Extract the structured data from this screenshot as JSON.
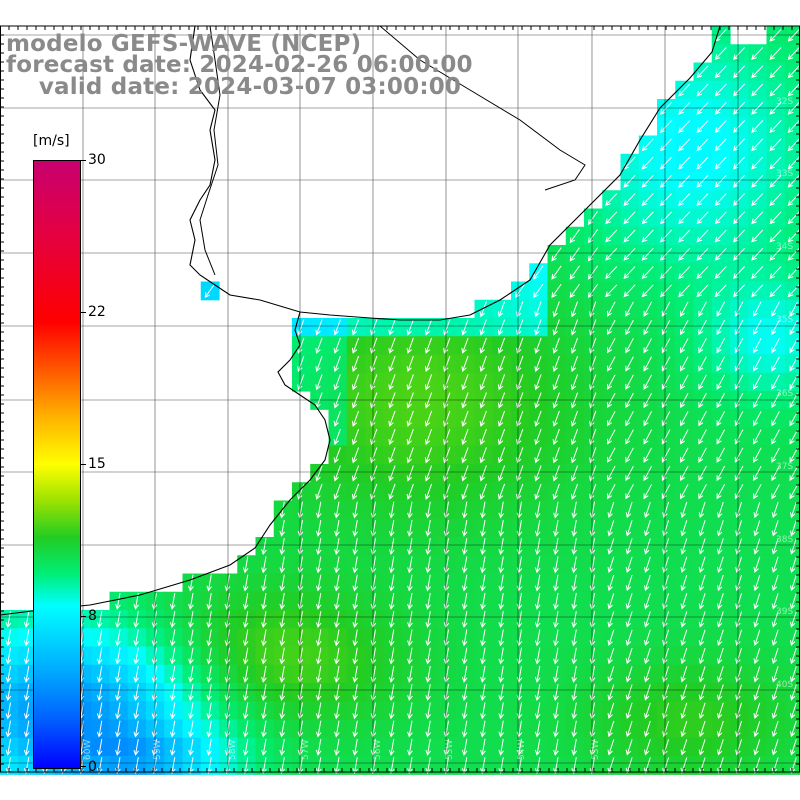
{
  "title": {
    "line1": "modelo GEFS-WAVE (NCEP)",
    "line2": "forecast date: 2024-02-26 06:00:00",
    "line3": "valid date: 2024-03-07 03:00:00"
  },
  "colorbar": {
    "units": "[m/s]",
    "labels": [
      "30",
      "22",
      "15",
      "8",
      "0"
    ],
    "min": 0,
    "max": 30
  },
  "map": {
    "variable": "wind speed and direction",
    "lat_labels": [
      "32S",
      "33S",
      "34S",
      "35S",
      "36S",
      "37S",
      "38S",
      "39S",
      "40S"
    ],
    "lon_labels": [
      "60W",
      "59W",
      "58W",
      "57W",
      "56W",
      "55W",
      "54W",
      "53W"
    ],
    "colors": {
      "land": "#ffffff",
      "coastline": "#000000",
      "grid": "#000000",
      "arrow": "#ffffff"
    }
  }
}
